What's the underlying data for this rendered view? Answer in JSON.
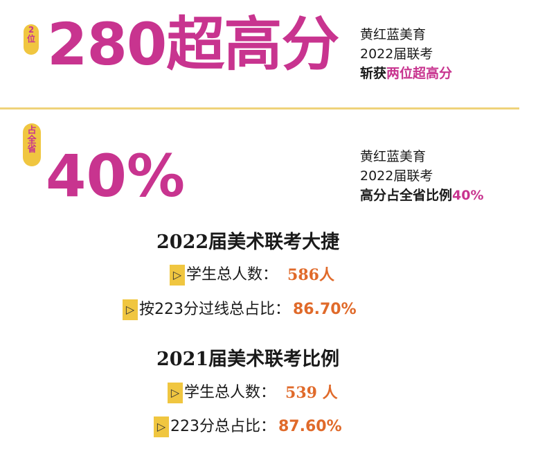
{
  "hero": {
    "badge_rank_1": "2",
    "badge_rank_2": "位",
    "score_text": "280超高分",
    "side_line1": "黄红蓝美育",
    "side_line2": "2022届联考",
    "side_line3_prefix": "斩获",
    "side_line3_accent": "两位超高分"
  },
  "share": {
    "badge_1": "占",
    "badge_2": "全",
    "badge_3": "省",
    "percent_text": "40%",
    "side_line1": "黄红蓝美育",
    "side_line2": "2022届联考",
    "side_line3_prefix": "高分占全省比例",
    "side_line3_accent": "40%"
  },
  "stats_2022": {
    "heading": "2022届美术联考大捷",
    "total_label": "学生总人数：",
    "total_value": "586人",
    "ratio_label": "按223分过线总占比：",
    "ratio_value": "86.70%"
  },
  "stats_2021": {
    "heading": "2021届美术联考比例",
    "total_label": "学生总人数：",
    "total_value": "539 人",
    "ratio_label": "223分总占比：",
    "ratio_value": "87.60%"
  },
  "marker_glyph": "▷",
  "colors": {
    "magenta": "#c8348f",
    "gold": "#f0c640",
    "orange": "#e06a2a",
    "divider": "#efd27a"
  }
}
